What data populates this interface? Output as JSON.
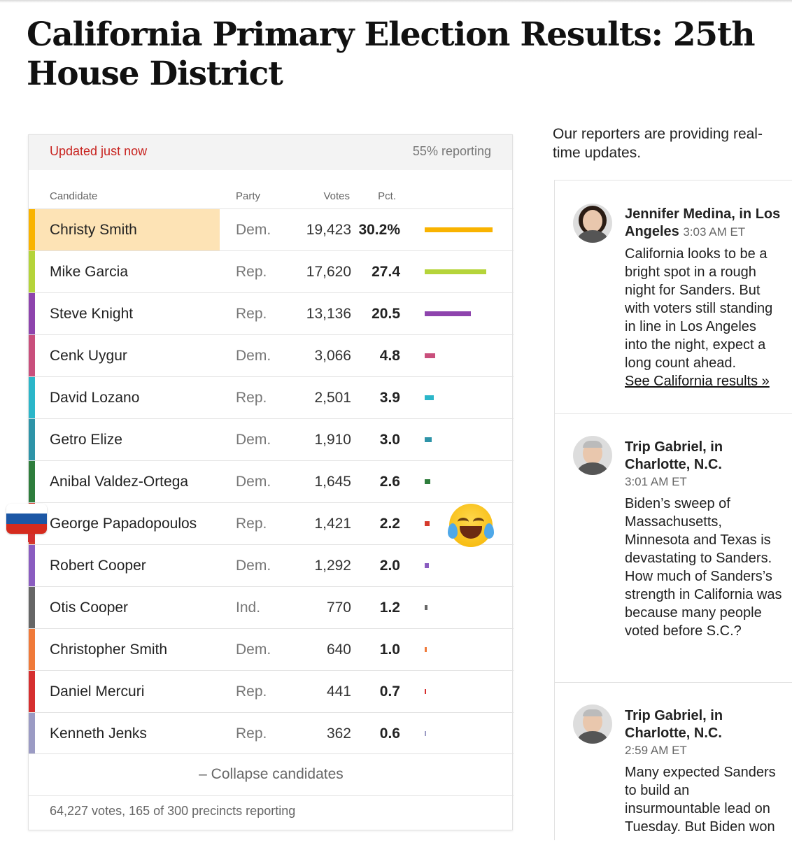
{
  "page": {
    "title": "California Primary Election Results: 25th House District"
  },
  "results": {
    "updated": "Updated just now",
    "reporting": "55% reporting",
    "columns": {
      "candidate": "Candidate",
      "party": "Party",
      "votes": "Votes",
      "pct": "Pct."
    },
    "candidates": [
      {
        "name": "Christy Smith",
        "party": "Dem.",
        "votes": "19,423",
        "pct": "30.2%",
        "pct_value": 30.2,
        "color": "#f9b300",
        "leader": true
      },
      {
        "name": "Mike Garcia",
        "party": "Rep.",
        "votes": "17,620",
        "pct": "27.4",
        "pct_value": 27.4,
        "color": "#b5d43a"
      },
      {
        "name": "Steve Knight",
        "party": "Rep.",
        "votes": "13,136",
        "pct": "20.5",
        "pct_value": 20.5,
        "color": "#8e44ad"
      },
      {
        "name": "Cenk Uygur",
        "party": "Dem.",
        "votes": "3,066",
        "pct": "4.8",
        "pct_value": 4.8,
        "color": "#c94f7c"
      },
      {
        "name": "David Lozano",
        "party": "Rep.",
        "votes": "2,501",
        "pct": "3.9",
        "pct_value": 3.9,
        "color": "#2bb6c9"
      },
      {
        "name": "Getro Elize",
        "party": "Dem.",
        "votes": "1,910",
        "pct": "3.0",
        "pct_value": 3.0,
        "color": "#2e94a8"
      },
      {
        "name": "Anibal Valdez-Ortega",
        "party": "Dem.",
        "votes": "1,645",
        "pct": "2.6",
        "pct_value": 2.6,
        "color": "#2e7d3c"
      },
      {
        "name": "George Papadopoulos",
        "party": "Rep.",
        "votes": "1,421",
        "pct": "2.2",
        "pct_value": 2.2,
        "color": "#d63a2c"
      },
      {
        "name": "Robert Cooper",
        "party": "Dem.",
        "votes": "1,292",
        "pct": "2.0",
        "pct_value": 2.0,
        "color": "#8a5cc0"
      },
      {
        "name": "Otis Cooper",
        "party": "Ind.",
        "votes": "770",
        "pct": "1.2",
        "pct_value": 1.2,
        "color": "#666666"
      },
      {
        "name": "Christopher Smith",
        "party": "Dem.",
        "votes": "640",
        "pct": "1.0",
        "pct_value": 1.0,
        "color": "#f07a3a"
      },
      {
        "name": "Daniel Mercuri",
        "party": "Rep.",
        "votes": "441",
        "pct": "0.7",
        "pct_value": 0.7,
        "color": "#d62f2f"
      },
      {
        "name": "Kenneth Jenks",
        "party": "Rep.",
        "votes": "362",
        "pct": "0.6",
        "pct_value": 0.6,
        "color": "#9b9bc4"
      }
    ],
    "collapse_label": "– Collapse candidates",
    "footer": "64,227 votes, 165 of 300 precincts reporting"
  },
  "overlays": {
    "flag_colors": [
      "#ffffff",
      "#1c57a5",
      "#d52b1e"
    ],
    "emoji": "face-with-tears-of-joy"
  },
  "live": {
    "intro": "Our reporters are providing real-time updates.",
    "posts": [
      {
        "author": "Jennifer Medina, in Los Angeles",
        "time": "3:03 AM ET",
        "body": "California looks to be a bright spot in a rough night for Sanders. But with voters still standing in line in Los Angeles into the night, expect a long count ahead.",
        "link": "See California results »"
      },
      {
        "author": "Trip Gabriel, in Charlotte, N.C.",
        "time": "3:01 AM ET",
        "body": "Biden’s sweep of Massachusetts, Minnesota and Texas is devastating to Sanders. How much of Sanders’s strength in California was because many people voted before S.C.?"
      },
      {
        "author": "Trip Gabriel, in Charlotte, N.C.",
        "time": "2:59 AM ET",
        "body": "Many expected Sanders to build an insurmountable lead on Tuesday. But Biden won"
      }
    ]
  }
}
